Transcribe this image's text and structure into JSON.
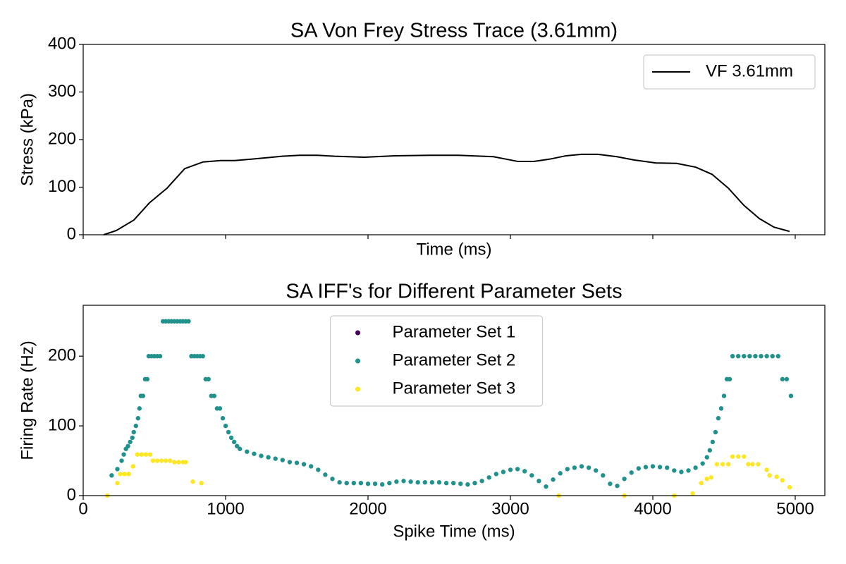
{
  "chart_data": [
    {
      "type": "line",
      "title": "SA Von Frey Stress Trace (3.61mm)",
      "xlabel": "Time (ms)",
      "ylabel": "Stress (kPa)",
      "xlim": [
        0,
        5208
      ],
      "ylim": [
        0,
        400
      ],
      "xticks": [
        0,
        1000,
        2000,
        3000,
        4000,
        5000
      ],
      "yticks": [
        0,
        100,
        200,
        300,
        400
      ],
      "show_xtick_labels": false,
      "legend": "upper right",
      "x": [
        144,
        233,
        356,
        465,
        589,
        713,
        842,
        965,
        1064,
        1188,
        1396,
        1520,
        1644,
        1767,
        1975,
        2188,
        2436,
        2634,
        2881,
        3054,
        3163,
        3277,
        3391,
        3500,
        3614,
        3748,
        3871,
        4020,
        4168,
        4302,
        4416,
        4530,
        4639,
        4748,
        4851,
        4960
      ],
      "series": [
        {
          "name": "VF 3.61mm",
          "color": "#000000",
          "values": [
            0,
            9,
            31,
            67,
            98,
            139,
            153,
            156,
            156,
            159,
            165,
            167,
            167,
            165,
            163,
            166,
            167,
            167,
            164,
            154,
            154,
            159,
            166,
            169,
            169,
            164,
            157,
            151,
            150,
            142,
            127,
            98,
            62,
            34,
            16,
            7
          ]
        }
      ]
    },
    {
      "type": "scatter",
      "title": "SA IFF's for Different Parameter Sets",
      "xlabel": "Spike Time (ms)",
      "ylabel": "Firing Rate (Hz)",
      "xlim": [
        0,
        5208
      ],
      "ylim": [
        0,
        273
      ],
      "xticks": [
        0,
        1000,
        2000,
        3000,
        4000,
        5000
      ],
      "yticks": [
        0,
        100,
        200
      ],
      "show_xtick_labels": true,
      "legend": "upper center",
      "series": [
        {
          "name": "Parameter Set 1",
          "color": "#440154",
          "x": [],
          "values": []
        },
        {
          "name": "Parameter Set 2",
          "color": "#21918c",
          "x": [
            200,
            240,
            270,
            285,
            300,
            315,
            330,
            345,
            355,
            370,
            385,
            395,
            405,
            420,
            435,
            450,
            460,
            480,
            500,
            520,
            540,
            560,
            580,
            600,
            620,
            640,
            660,
            680,
            700,
            720,
            740,
            760,
            780,
            800,
            820,
            840,
            860,
            880,
            900,
            920,
            940,
            960,
            980,
            1000,
            1020,
            1040,
            1060,
            1080,
            1100,
            1150,
            1200,
            1250,
            1300,
            1350,
            1400,
            1450,
            1500,
            1550,
            1600,
            1650,
            1700,
            1750,
            1800,
            1850,
            1900,
            1950,
            2000,
            2050,
            2100,
            2150,
            2200,
            2250,
            2300,
            2350,
            2400,
            2450,
            2500,
            2550,
            2600,
            2650,
            2700,
            2750,
            2800,
            2850,
            2900,
            2950,
            3000,
            3050,
            3100,
            3150,
            3200,
            3250,
            3300,
            3350,
            3400,
            3450,
            3500,
            3550,
            3600,
            3650,
            3700,
            3750,
            3800,
            3850,
            3900,
            3950,
            4000,
            4050,
            4100,
            4150,
            4200,
            4250,
            4300,
            4350,
            4380,
            4400,
            4420,
            4440,
            4460,
            4480,
            4500,
            4520,
            4540,
            4560,
            4600,
            4640,
            4680,
            4720,
            4760,
            4800,
            4840,
            4880,
            4910,
            4940,
            4970
          ],
          "values": [
            29,
            38,
            50,
            59,
            67,
            71,
            77,
            83,
            91,
            100,
            111,
            125,
            143,
            143,
            167,
            167,
            200,
            200,
            200,
            200,
            200,
            250,
            250,
            250,
            250,
            250,
            250,
            250,
            250,
            250,
            250,
            200,
            200,
            200,
            200,
            200,
            167,
            167,
            143,
            143,
            125,
            125,
            111,
            100,
            91,
            83,
            77,
            71,
            67,
            63,
            60,
            57,
            55,
            53,
            51,
            48,
            47,
            45,
            42,
            37,
            30,
            24,
            19,
            18,
            18,
            18,
            17,
            17,
            16,
            18,
            20,
            21,
            20,
            19,
            19,
            19,
            19,
            18,
            18,
            17,
            16,
            18,
            21,
            26,
            31,
            34,
            37,
            38,
            35,
            29,
            21,
            13,
            23,
            32,
            38,
            40,
            42,
            40,
            36,
            29,
            17,
            14,
            24,
            33,
            39,
            41,
            42,
            41,
            40,
            36,
            34,
            36,
            40,
            46,
            55,
            65,
            77,
            91,
            111,
            125,
            143,
            167,
            167,
            200,
            200,
            200,
            200,
            200,
            200,
            200,
            200,
            200,
            167,
            167,
            143
          ]
        },
        {
          "name": "Parameter Set 3",
          "color": "#fde725",
          "x": [
            170,
            240,
            260,
            290,
            320,
            350,
            380,
            410,
            440,
            470,
            490,
            520,
            550,
            580,
            610,
            640,
            670,
            700,
            720,
            770,
            830,
            3340,
            3800,
            4150,
            4280,
            4340,
            4380,
            4410,
            4450,
            4490,
            4530,
            4560,
            4600,
            4640,
            4670,
            4700,
            4740,
            4800,
            4820,
            4870,
            4910,
            4960
          ],
          "values": [
            0,
            18,
            31,
            31,
            31,
            42,
            59,
            59,
            59,
            59,
            50,
            50,
            50,
            50,
            50,
            48,
            48,
            48,
            48,
            20,
            18,
            0,
            0,
            0,
            3,
            18,
            24,
            26,
            45,
            45,
            45,
            56,
            56,
            56,
            45,
            45,
            45,
            37,
            29,
            27,
            22,
            12
          ]
        }
      ]
    }
  ]
}
